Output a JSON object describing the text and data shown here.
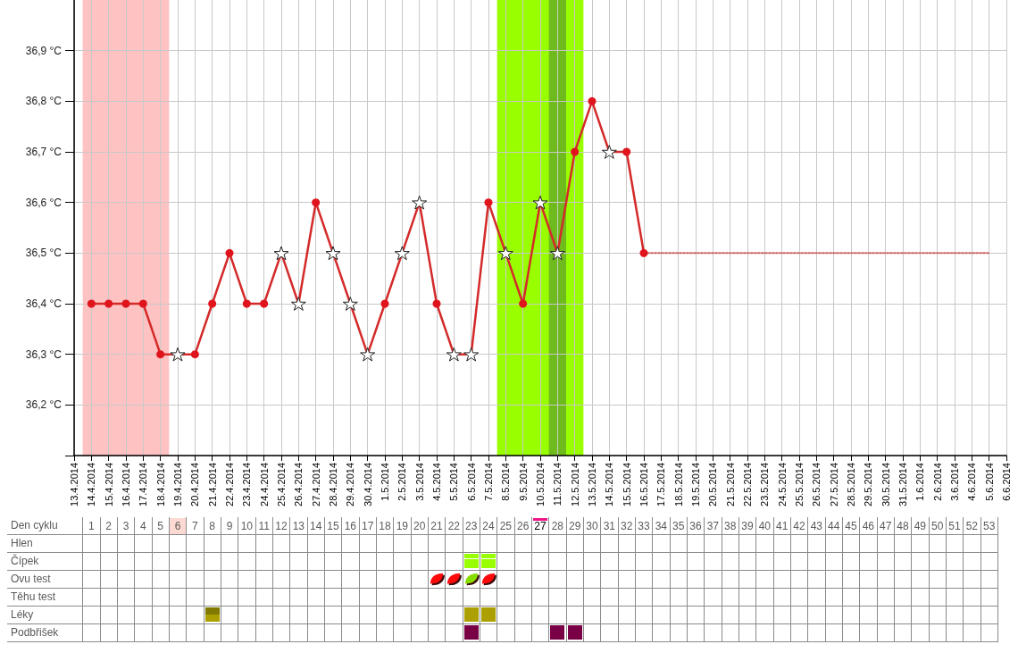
{
  "chart_data": [
    {
      "type": "line",
      "categories": [
        "13.4.2014",
        "14.4.2014",
        "15.4.2014",
        "16.4.2014",
        "17.4.2014",
        "18.4.2014",
        "19.4.2014",
        "20.4.2014",
        "21.4.2014",
        "22.4.2014",
        "23.4.2014",
        "24.4.2014",
        "25.4.2014",
        "26.4.2014",
        "27.4.2014",
        "28.4.2014",
        "29.4.2014",
        "30.4.2014",
        "1.5.2014",
        "2.5.2014",
        "3.5.2014",
        "4.5.2014",
        "5.5.2014",
        "6.5.2014",
        "7.5.2014",
        "8.5.2014",
        "9.5.2014",
        "10.5.2014",
        "11.5.2014",
        "12.5.2014",
        "13.5.2014",
        "14.5.2014",
        "15.5.2014",
        "16.5.2014",
        "17.5.2014",
        "18.5.2014",
        "19.5.2014",
        "20.5.2014",
        "21.5.2014",
        "22.5.2014",
        "23.5.2014",
        "24.5.2014",
        "25.5.2014",
        "26.5.2014",
        "27.5.2014",
        "28.5.2014",
        "29.5.2014",
        "30.5.2014",
        "31.5.2014",
        "1.6.2014",
        "2.6.2014",
        "3.6.2014",
        "4.6.2014",
        "5.6.2014",
        "6.6.2014"
      ],
      "series": [
        {
          "type": "line",
          "color": "#d42a2a",
          "marker": "none",
          "line_style": "solid",
          "values": [
            null,
            36.4,
            36.4,
            36.4,
            36.4,
            36.3,
            36.3,
            36.3,
            36.4,
            36.5,
            36.4,
            36.4,
            36.5,
            36.4,
            36.6,
            36.5,
            36.4,
            36.3,
            36.4,
            36.5,
            36.6,
            36.4,
            36.3,
            36.3,
            36.6,
            36.5,
            36.4,
            36.6,
            36.5,
            36.7,
            36.8,
            36.7,
            36.7,
            36.5,
            null,
            null,
            null,
            null,
            null,
            null,
            null,
            null,
            null,
            null,
            null,
            null,
            null,
            null,
            null,
            null,
            null,
            null,
            null,
            null,
            null
          ]
        },
        {
          "type": "scatter",
          "color": "#e0141c",
          "marker": "circle",
          "values": [
            null,
            36.4,
            36.4,
            36.4,
            36.4,
            36.3,
            null,
            36.3,
            36.4,
            36.5,
            36.4,
            36.4,
            null,
            null,
            36.6,
            null,
            null,
            null,
            36.4,
            null,
            null,
            36.4,
            null,
            null,
            36.6,
            null,
            36.4,
            null,
            null,
            36.7,
            36.8,
            null,
            36.7,
            36.5,
            null,
            null,
            null,
            null,
            null,
            null,
            null,
            null,
            null,
            null,
            null,
            null,
            null,
            null,
            null,
            null,
            null,
            null,
            null,
            null,
            null
          ]
        },
        {
          "type": "scatter",
          "color": "#ffffff",
          "marker": "star",
          "values": [
            null,
            null,
            null,
            null,
            null,
            null,
            36.3,
            null,
            null,
            null,
            null,
            null,
            36.5,
            36.4,
            null,
            36.5,
            36.4,
            36.3,
            null,
            36.5,
            36.6,
            null,
            36.3,
            36.3,
            null,
            36.5,
            null,
            36.6,
            36.5,
            null,
            null,
            36.7,
            null,
            null,
            null,
            null,
            null,
            null,
            null,
            null,
            null,
            null,
            null,
            null,
            null,
            null,
            null,
            null,
            null,
            null,
            null,
            null,
            null,
            null,
            null
          ]
        },
        {
          "type": "line",
          "color": "#cc6666",
          "marker": "none",
          "line_style": "dotted",
          "values": [
            null,
            null,
            null,
            null,
            null,
            null,
            null,
            null,
            null,
            null,
            null,
            null,
            null,
            null,
            null,
            null,
            null,
            null,
            null,
            null,
            null,
            null,
            null,
            null,
            null,
            null,
            null,
            null,
            null,
            null,
            null,
            null,
            null,
            36.5,
            36.5,
            36.5,
            36.5,
            36.5,
            36.5,
            36.5,
            36.5,
            36.5,
            36.5,
            36.5,
            36.5,
            36.5,
            36.5,
            36.5,
            36.5,
            36.5,
            36.5,
            36.5,
            36.5,
            36.5,
            null
          ]
        }
      ],
      "ylim": [
        36.1,
        37.0
      ],
      "yticks": [
        {
          "value": 36.1,
          "label": null
        },
        {
          "value": 36.2,
          "label": "36,2 °C"
        },
        {
          "value": 36.3,
          "label": "36,3 °C"
        },
        {
          "value": 36.4,
          "label": "36,4 °C"
        },
        {
          "value": 36.5,
          "label": "36,5 °C"
        },
        {
          "value": 36.6,
          "label": "36,6 °C"
        },
        {
          "value": 36.7,
          "label": "36,7 °C"
        },
        {
          "value": 36.8,
          "label": "36,8 °C"
        },
        {
          "value": 36.9,
          "label": "36,9 °C"
        }
      ],
      "x2lim": [
        0,
        54
      ],
      "x2ticks": [
        1,
        2,
        3,
        4,
        5,
        6,
        7,
        8,
        9,
        10,
        11,
        12,
        13,
        14,
        15,
        16,
        17,
        18,
        19,
        20,
        21,
        22,
        23,
        24,
        25,
        26,
        27,
        28,
        29,
        30,
        31,
        32,
        33,
        34,
        35,
        36,
        37,
        38,
        39,
        40,
        41,
        42,
        43,
        44,
        45,
        46,
        47,
        48,
        49,
        50,
        51,
        52,
        53
      ],
      "bands": [
        {
          "axis": "x",
          "from": "14.4.2014",
          "to": "18.4.2014",
          "color": "#ffc2c2"
        },
        {
          "axis": "x",
          "from": "8.5.2014",
          "to": "12.5.2014",
          "color": "#99ff00"
        },
        {
          "axis": "x",
          "from": "11.5.2014",
          "to": "11.5.2014",
          "color": "#6fba1c"
        }
      ],
      "grid": true
    },
    {
      "type": "other",
      "y_categories": [
        "Den cyklu",
        "Hlen",
        "Čípek",
        "Ovu test",
        "Těhu test",
        "Léky",
        "Podbřišek"
      ],
      "cells": [
        [
          null,
          null,
          null,
          null,
          null,
          {
            "kind": "shade",
            "color": "#fcd9d3"
          },
          null,
          null,
          null,
          null,
          null,
          null,
          null,
          null,
          null,
          null,
          null,
          null,
          null,
          null,
          null,
          null,
          null,
          null,
          null,
          null,
          {
            "kind": "marker",
            "color": "#f0168a"
          },
          null,
          null,
          null,
          null,
          null,
          null,
          null,
          null,
          null,
          null,
          null,
          null,
          null,
          null,
          null,
          null,
          null,
          null,
          null,
          null,
          null,
          null,
          null,
          null,
          null,
          null
        ],
        [
          null,
          null,
          null,
          null,
          null,
          null,
          null,
          null,
          null,
          null,
          null,
          null,
          null,
          null,
          null,
          null,
          null,
          null,
          null,
          null,
          null,
          null,
          null,
          null,
          null,
          null,
          null,
          null,
          null,
          null,
          null,
          null,
          null,
          null,
          null,
          null,
          null,
          null,
          null,
          null,
          null,
          null,
          null,
          null,
          null,
          null,
          null,
          null,
          null,
          null,
          null,
          null,
          null
        ],
        [
          null,
          null,
          null,
          null,
          null,
          null,
          null,
          null,
          null,
          null,
          null,
          null,
          null,
          null,
          null,
          null,
          null,
          null,
          null,
          null,
          null,
          null,
          {
            "kind": "stripes",
            "color": "#99ff00"
          },
          {
            "kind": "stripes",
            "color": "#99ff00"
          },
          null,
          null,
          null,
          null,
          null,
          null,
          null,
          null,
          null,
          null,
          null,
          null,
          null,
          null,
          null,
          null,
          null,
          null,
          null,
          null,
          null,
          null,
          null,
          null,
          null,
          null,
          null,
          null,
          null
        ],
        [
          null,
          null,
          null,
          null,
          null,
          null,
          null,
          null,
          null,
          null,
          null,
          null,
          null,
          null,
          null,
          null,
          null,
          null,
          null,
          null,
          {
            "kind": "leaf",
            "color": "#ff0a0a"
          },
          {
            "kind": "leaf",
            "color": "#ff0a0a"
          },
          {
            "kind": "leaf",
            "color": "#88dd00"
          },
          {
            "kind": "leaf",
            "color": "#ff0a0a"
          },
          null,
          null,
          null,
          null,
          null,
          null,
          null,
          null,
          null,
          null,
          null,
          null,
          null,
          null,
          null,
          null,
          null,
          null,
          null,
          null,
          null,
          null,
          null,
          null,
          null,
          null,
          null,
          null,
          null
        ],
        [
          null,
          null,
          null,
          null,
          null,
          null,
          null,
          null,
          null,
          null,
          null,
          null,
          null,
          null,
          null,
          null,
          null,
          null,
          null,
          null,
          null,
          null,
          null,
          null,
          null,
          null,
          null,
          null,
          null,
          null,
          null,
          null,
          null,
          null,
          null,
          null,
          null,
          null,
          null,
          null,
          null,
          null,
          null,
          null,
          null,
          null,
          null,
          null,
          null,
          null,
          null,
          null,
          null
        ],
        [
          null,
          null,
          null,
          null,
          null,
          null,
          null,
          {
            "kind": "square",
            "colors": [
              "#817900",
              "#ac9f00"
            ]
          },
          null,
          null,
          null,
          null,
          null,
          null,
          null,
          null,
          null,
          null,
          null,
          null,
          null,
          null,
          {
            "kind": "square",
            "color": "#ac9f00"
          },
          {
            "kind": "square",
            "color": "#ac9f00"
          },
          null,
          null,
          null,
          null,
          null,
          null,
          null,
          null,
          null,
          null,
          null,
          null,
          null,
          null,
          null,
          null,
          null,
          null,
          null,
          null,
          null,
          null,
          null,
          null,
          null,
          null,
          null,
          null,
          null
        ],
        [
          null,
          null,
          null,
          null,
          null,
          null,
          null,
          null,
          null,
          null,
          null,
          null,
          null,
          null,
          null,
          null,
          null,
          null,
          null,
          null,
          null,
          null,
          {
            "kind": "square",
            "color": "#7a0046"
          },
          null,
          null,
          null,
          null,
          {
            "kind": "square",
            "color": "#7a0046"
          },
          {
            "kind": "square",
            "color": "#7a0046"
          },
          null,
          null,
          null,
          null,
          null,
          null,
          null,
          null,
          null,
          null,
          null,
          null,
          null,
          null,
          null,
          null,
          null,
          null,
          null,
          null,
          null,
          null,
          null,
          null
        ]
      ]
    }
  ]
}
